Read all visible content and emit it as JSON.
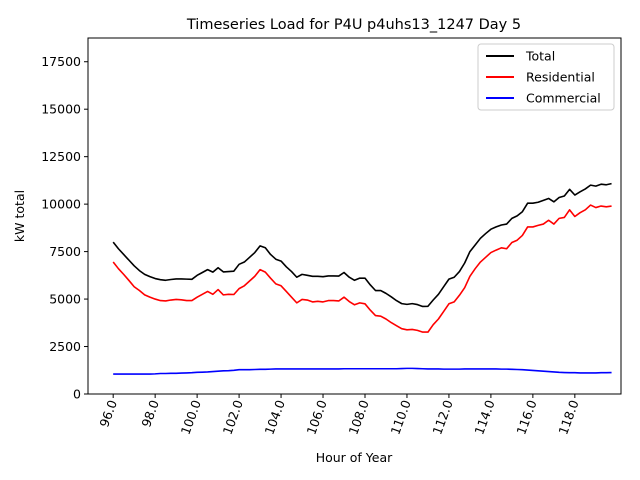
{
  "chart_data": {
    "type": "line",
    "title": "Timeseries Load for P4U p4uhs13_1247  Day 5",
    "xlabel": "Hour of Year",
    "ylabel": "kW total",
    "xlim": [
      94.8,
      120.2
    ],
    "ylim": [
      0,
      18750
    ],
    "xticks": [
      96,
      98,
      100,
      102,
      104,
      106,
      108,
      110,
      112,
      114,
      116,
      118
    ],
    "xtick_labels": [
      "96.0",
      "98.0",
      "100.0",
      "102.0",
      "104.0",
      "106.0",
      "108.0",
      "110.0",
      "112.0",
      "114.0",
      "116.0",
      "118.0"
    ],
    "yticks": [
      0,
      2500,
      5000,
      7500,
      10000,
      12500,
      15000,
      17500
    ],
    "ytick_labels": [
      "0",
      "2500",
      "5000",
      "7500",
      "10000",
      "12500",
      "15000",
      "17500"
    ],
    "legend_position": "top-right",
    "grid": false,
    "x": [
      96.0,
      96.25,
      96.5,
      96.75,
      97.0,
      97.25,
      97.5,
      97.75,
      98.0,
      98.25,
      98.5,
      98.75,
      99.0,
      99.25,
      99.5,
      99.75,
      100.0,
      100.25,
      100.5,
      100.75,
      101.0,
      101.25,
      101.5,
      101.75,
      102.0,
      102.25,
      102.5,
      102.75,
      103.0,
      103.25,
      103.5,
      103.75,
      104.0,
      104.25,
      104.5,
      104.75,
      105.0,
      105.25,
      105.5,
      105.75,
      106.0,
      106.25,
      106.5,
      106.75,
      107.0,
      107.25,
      107.5,
      107.75,
      108.0,
      108.25,
      108.5,
      108.75,
      109.0,
      109.25,
      109.5,
      109.75,
      110.0,
      110.25,
      110.5,
      110.75,
      111.0,
      111.25,
      111.5,
      111.75,
      112.0,
      112.25,
      112.5,
      112.75,
      113.0,
      113.25,
      113.5,
      113.75,
      114.0,
      114.25,
      114.5,
      114.75,
      115.0,
      115.25,
      115.5,
      115.75,
      116.0,
      116.25,
      116.5,
      116.75,
      117.0,
      117.25,
      117.5,
      117.75,
      118.0,
      118.25,
      118.5,
      118.75,
      119.0,
      119.25,
      119.5,
      119.75
    ],
    "series": [
      {
        "name": "Total",
        "color": "#000000",
        "values": [
          8000,
          7650,
          7350,
          7050,
          6750,
          6500,
          6300,
          6180,
          6080,
          6020,
          5990,
          6030,
          6060,
          6060,
          6050,
          6040,
          6250,
          6400,
          6550,
          6420,
          6650,
          6430,
          6450,
          6470,
          6830,
          6950,
          7200,
          7450,
          7800,
          7700,
          7350,
          7100,
          7000,
          6700,
          6450,
          6150,
          6300,
          6250,
          6200,
          6200,
          6180,
          6220,
          6220,
          6210,
          6400,
          6150,
          5990,
          6100,
          6100,
          5750,
          5450,
          5450,
          5300,
          5120,
          4920,
          4760,
          4720,
          4760,
          4710,
          4610,
          4620,
          4950,
          5250,
          5650,
          6050,
          6150,
          6450,
          6900,
          7500,
          7850,
          8200,
          8450,
          8680,
          8800,
          8900,
          8950,
          9250,
          9380,
          9600,
          10050,
          10050,
          10100,
          10200,
          10300,
          10120,
          10350,
          10430,
          10780,
          10480,
          10650,
          10800,
          11000,
          10950,
          11050,
          11020,
          11080
        ]
      },
      {
        "name": "Residential",
        "color": "#ff0000",
        "values": [
          6950,
          6600,
          6300,
          5980,
          5650,
          5450,
          5220,
          5100,
          5000,
          4920,
          4900,
          4950,
          4980,
          4960,
          4920,
          4920,
          5100,
          5250,
          5400,
          5250,
          5500,
          5220,
          5250,
          5240,
          5550,
          5700,
          5950,
          6200,
          6550,
          6420,
          6100,
          5800,
          5700,
          5400,
          5100,
          4800,
          4980,
          4950,
          4850,
          4880,
          4850,
          4920,
          4920,
          4900,
          5100,
          4870,
          4700,
          4800,
          4750,
          4420,
          4130,
          4100,
          3950,
          3760,
          3600,
          3440,
          3380,
          3400,
          3350,
          3260,
          3260,
          3650,
          3950,
          4350,
          4750,
          4850,
          5200,
          5600,
          6200,
          6600,
          6950,
          7200,
          7450,
          7580,
          7700,
          7650,
          7980,
          8100,
          8350,
          8800,
          8800,
          8880,
          8950,
          9150,
          8950,
          9250,
          9300,
          9700,
          9350,
          9550,
          9700,
          9950,
          9820,
          9900,
          9860,
          9900
        ]
      },
      {
        "name": "Commercial",
        "color": "#0000ff",
        "values": [
          1050,
          1050,
          1050,
          1050,
          1050,
          1050,
          1050,
          1050,
          1060,
          1080,
          1080,
          1090,
          1090,
          1100,
          1110,
          1120,
          1140,
          1150,
          1160,
          1180,
          1200,
          1220,
          1230,
          1250,
          1280,
          1280,
          1280,
          1290,
          1300,
          1300,
          1310,
          1320,
          1320,
          1320,
          1320,
          1320,
          1320,
          1320,
          1320,
          1320,
          1320,
          1320,
          1320,
          1320,
          1330,
          1330,
          1330,
          1330,
          1330,
          1330,
          1330,
          1330,
          1330,
          1330,
          1330,
          1340,
          1350,
          1350,
          1340,
          1330,
          1320,
          1320,
          1320,
          1310,
          1310,
          1310,
          1310,
          1320,
          1320,
          1320,
          1320,
          1320,
          1320,
          1320,
          1310,
          1310,
          1300,
          1290,
          1280,
          1260,
          1240,
          1220,
          1200,
          1180,
          1160,
          1140,
          1130,
          1120,
          1120,
          1110,
          1110,
          1110,
          1110,
          1120,
          1120,
          1130
        ]
      }
    ]
  }
}
